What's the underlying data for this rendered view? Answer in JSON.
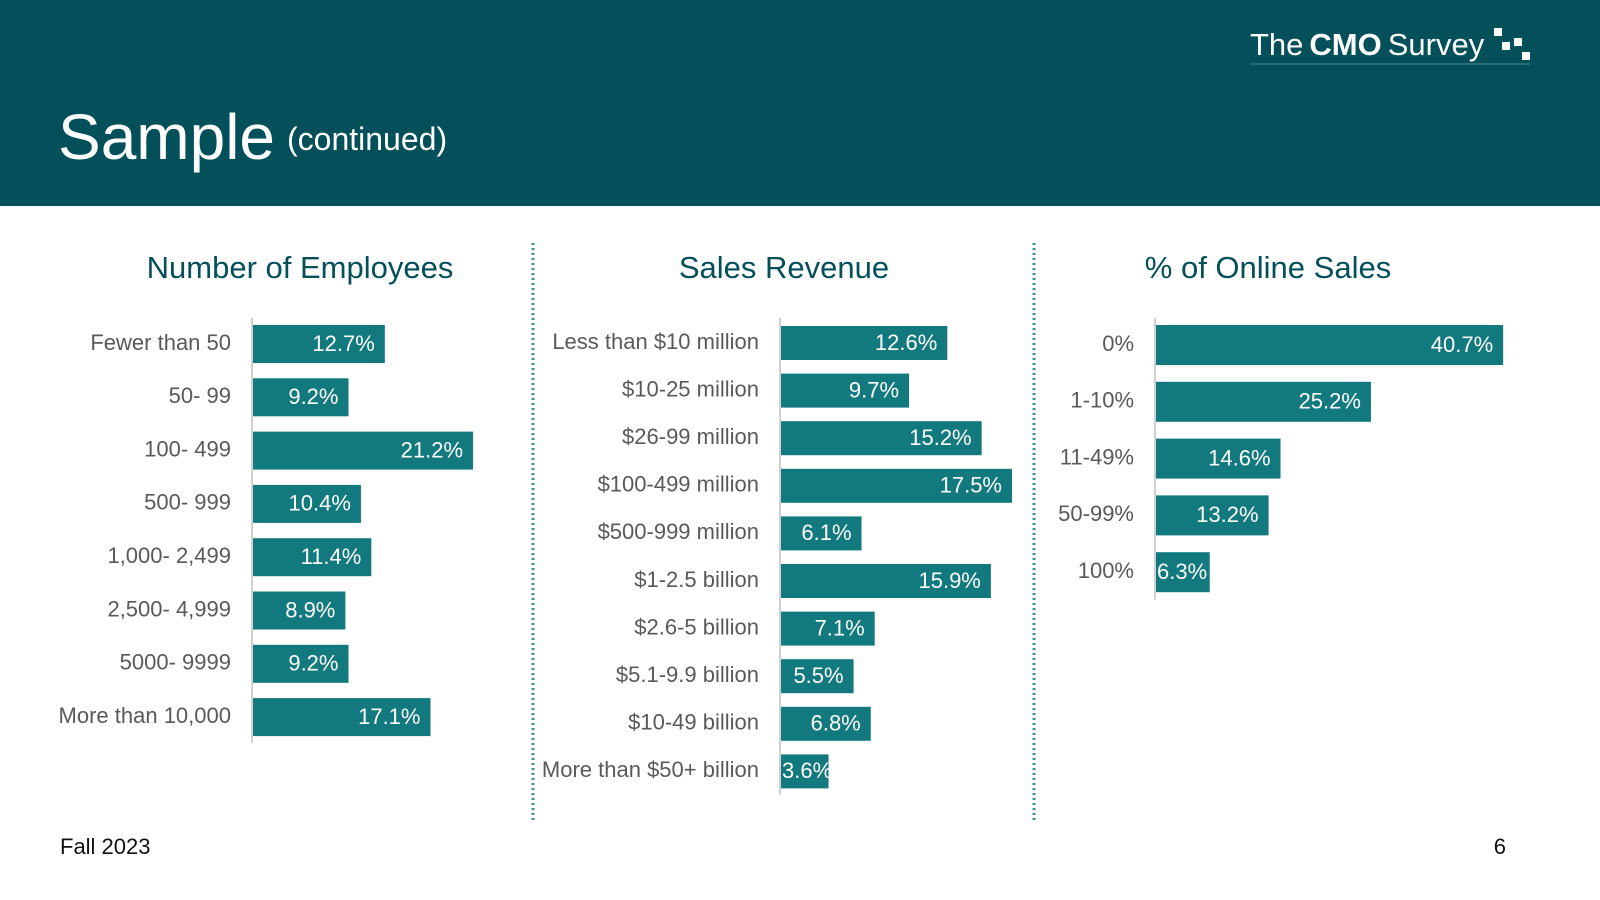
{
  "header": {
    "title": "Sample",
    "subtitle": "(continued)",
    "logo": {
      "the": "The",
      "cmo": "CMO",
      "survey": "Survey"
    }
  },
  "chart_data": [
    {
      "type": "bar",
      "orientation": "horizontal",
      "title": "Number of Employees",
      "color": "#127a7e",
      "categories": [
        "Fewer than 50",
        "50- 99",
        "100- 499",
        "500- 999",
        "1,000- 2,499",
        "2,500- 4,999",
        "5000- 9999",
        "More than 10,000"
      ],
      "values": [
        12.7,
        9.2,
        21.2,
        10.4,
        11.4,
        8.9,
        9.2,
        17.1
      ],
      "value_labels": [
        "12.7%",
        "9.2%",
        "21.2%",
        "10.4%",
        "11.4%",
        "8.9%",
        "9.2%",
        "17.1%"
      ]
    },
    {
      "type": "bar",
      "orientation": "horizontal",
      "title": "Sales Revenue",
      "color": "#127a7e",
      "categories": [
        "Less than $10 million",
        "$10-25 million",
        "$26-99 million",
        "$100-499 million",
        "$500-999 million",
        "$1-2.5 billion",
        "$2.6-5 billion",
        "$5.1-9.9 billion",
        "$10-49 billion",
        "More than $50+ billion"
      ],
      "values": [
        12.6,
        9.7,
        15.2,
        17.5,
        6.1,
        15.9,
        7.1,
        5.5,
        6.8,
        3.6
      ],
      "value_labels": [
        "12.6%",
        "9.7%",
        "15.2%",
        "17.5%",
        "6.1%",
        "15.9%",
        "7.1%",
        "5.5%",
        "6.8%",
        "3.6%"
      ]
    },
    {
      "type": "bar",
      "orientation": "horizontal",
      "title": "% of Online Sales",
      "color": "#127a7e",
      "categories": [
        "0%",
        "1-10%",
        "11-49%",
        "50-99%",
        "100%"
      ],
      "values": [
        40.7,
        25.2,
        14.6,
        13.2,
        6.3
      ],
      "value_labels": [
        "40.7%",
        "25.2%",
        "14.6%",
        "13.2%",
        "6.3%"
      ]
    }
  ],
  "footer": {
    "date": "Fall 2023",
    "page": "6"
  }
}
